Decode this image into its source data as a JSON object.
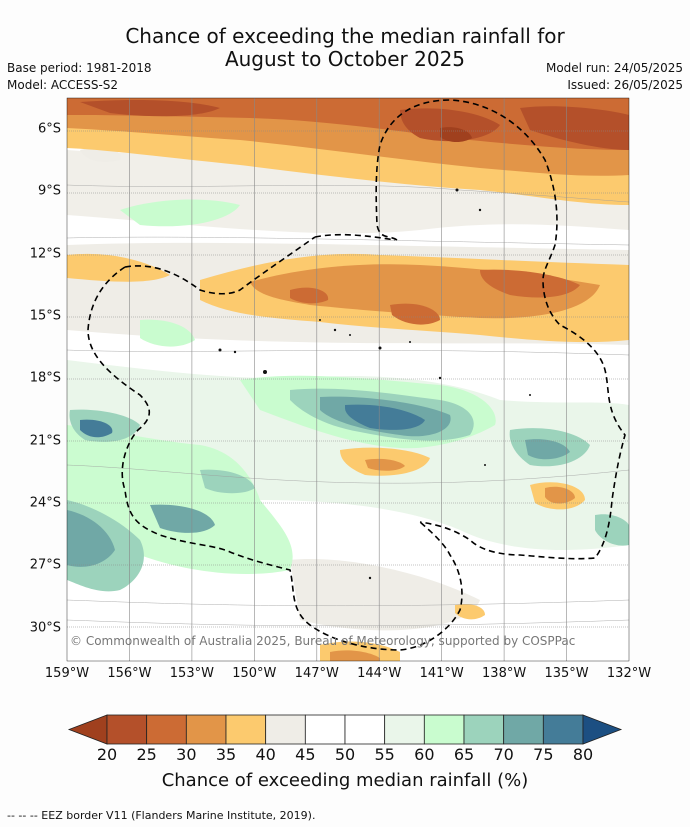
{
  "title": {
    "line1": "Chance of exceeding the median rainfall for",
    "line2": "August to October 2025"
  },
  "meta": {
    "base_period": "Base period: 1981-2018",
    "model": "Model: ACCESS-S2",
    "model_run": "Model run: 24/05/2025",
    "issued": "Issued: 26/05/2025"
  },
  "copyright": "© Commonwealth of Australia 2025, Bureau of Meteorology, supported by COSPPac",
  "map": {
    "lat_labels": [
      "6°S",
      "9°S",
      "12°S",
      "15°S",
      "18°S",
      "21°S",
      "24°S",
      "27°S",
      "30°S"
    ],
    "lat_values": [
      -6,
      -9,
      -12,
      -15,
      -18,
      -21,
      -24,
      -27,
      -30
    ],
    "lon_labels": [
      "159°W",
      "156°W",
      "153°W",
      "150°W",
      "147°W",
      "144°W",
      "141°W",
      "138°W",
      "135°W",
      "132°W"
    ],
    "lon_values": [
      -159,
      -156,
      -153,
      -150,
      -147,
      -144,
      -141,
      -138,
      -135,
      -132
    ],
    "lat_range": [
      -31.6,
      -4.5
    ],
    "lon_range": [
      -159,
      -132
    ],
    "border_style": "dashed"
  },
  "colorbar": {
    "ticks": [
      "20",
      "25",
      "30",
      "35",
      "40",
      "45",
      "50",
      "55",
      "60",
      "65",
      "70",
      "75",
      "80"
    ],
    "colors": [
      "#a0401e",
      "#b4502a",
      "#cc6b34",
      "#e29548",
      "#fcca6e",
      "#efede7",
      "#ffffff",
      "#ffffff",
      "#eaf6ea",
      "#c9fccf",
      "#9cd3bc",
      "#70a8a6",
      "#447c98",
      "#1c4f82"
    ],
    "label": "Chance of exceeding median rainfall (%)"
  },
  "footnote": "--  --  -- EEZ border V11 (Flanders Marine Institute, 2019)."
}
